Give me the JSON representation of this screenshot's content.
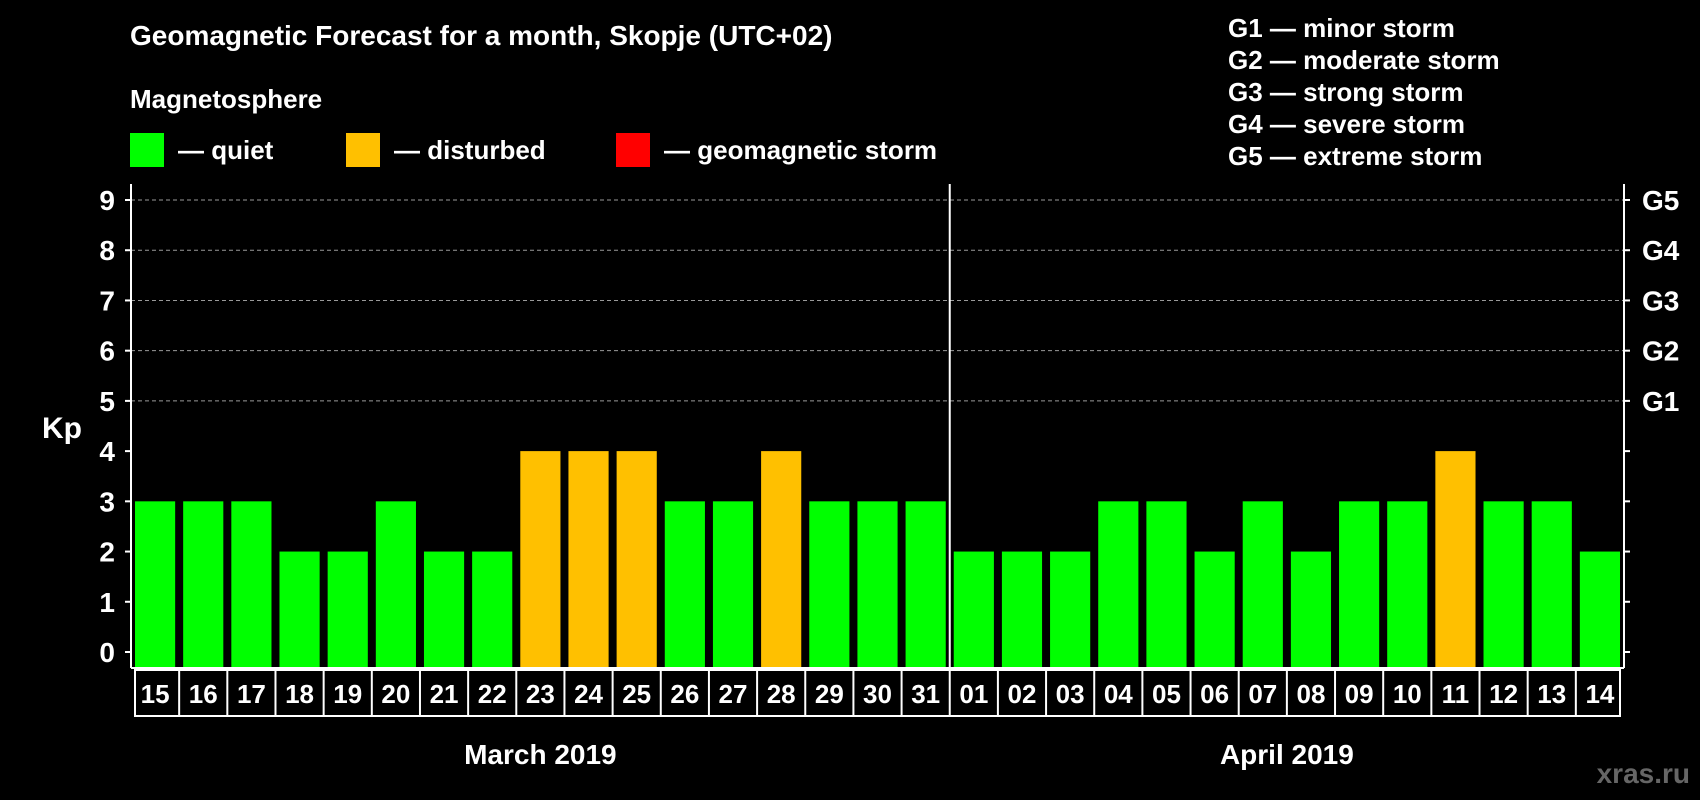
{
  "title": "Geomagnetic Forecast for a month, Skopje (UTC+02)",
  "subtitle": "Magnetosphere",
  "legend": [
    {
      "label": "— quiet",
      "color": "#00ff00"
    },
    {
      "label": "— disturbed",
      "color": "#ffc000"
    },
    {
      "label": "— geomagnetic storm",
      "color": "#ff0000"
    }
  ],
  "storm_levels": [
    {
      "text": "G1 — minor storm"
    },
    {
      "text": "G2 — moderate storm"
    },
    {
      "text": "G3 — strong storm"
    },
    {
      "text": "G4 — severe storm"
    },
    {
      "text": "G5 — extreme storm"
    }
  ],
  "watermark": "xras.ru",
  "colors": {
    "quiet": "#00ff00",
    "disturbed": "#ffc000",
    "storm": "#ff0000"
  },
  "chart_data": {
    "type": "bar",
    "ylabel": "Kp",
    "ylim": [
      0,
      9
    ],
    "yticks": [
      0,
      1,
      2,
      3,
      4,
      5,
      6,
      7,
      8,
      9
    ],
    "right_labels": [
      {
        "kp": 5,
        "label": "G1"
      },
      {
        "kp": 6,
        "label": "G2"
      },
      {
        "kp": 7,
        "label": "G3"
      },
      {
        "kp": 8,
        "label": "G4"
      },
      {
        "kp": 9,
        "label": "G5"
      }
    ],
    "grid_dashed_from": 5,
    "categories": [
      "15",
      "16",
      "17",
      "18",
      "19",
      "20",
      "21",
      "22",
      "23",
      "24",
      "25",
      "26",
      "27",
      "28",
      "29",
      "30",
      "31",
      "01",
      "02",
      "03",
      "04",
      "05",
      "06",
      "07",
      "08",
      "09",
      "10",
      "11",
      "12",
      "13",
      "14"
    ],
    "values": [
      3,
      3,
      3,
      2,
      2,
      3,
      2,
      2,
      4,
      4,
      4,
      3,
      3,
      4,
      3,
      3,
      3,
      2,
      2,
      2,
      3,
      3,
      2,
      3,
      2,
      3,
      3,
      4,
      3,
      3,
      2
    ],
    "status": [
      "quiet",
      "quiet",
      "quiet",
      "quiet",
      "quiet",
      "quiet",
      "quiet",
      "quiet",
      "disturbed",
      "disturbed",
      "disturbed",
      "quiet",
      "quiet",
      "disturbed",
      "quiet",
      "quiet",
      "quiet",
      "quiet",
      "quiet",
      "quiet",
      "quiet",
      "quiet",
      "quiet",
      "quiet",
      "quiet",
      "quiet",
      "quiet",
      "disturbed",
      "quiet",
      "quiet",
      "quiet"
    ],
    "months": [
      {
        "label": "March 2019",
        "count": 17
      },
      {
        "label": "April 2019",
        "count": 14
      }
    ]
  }
}
